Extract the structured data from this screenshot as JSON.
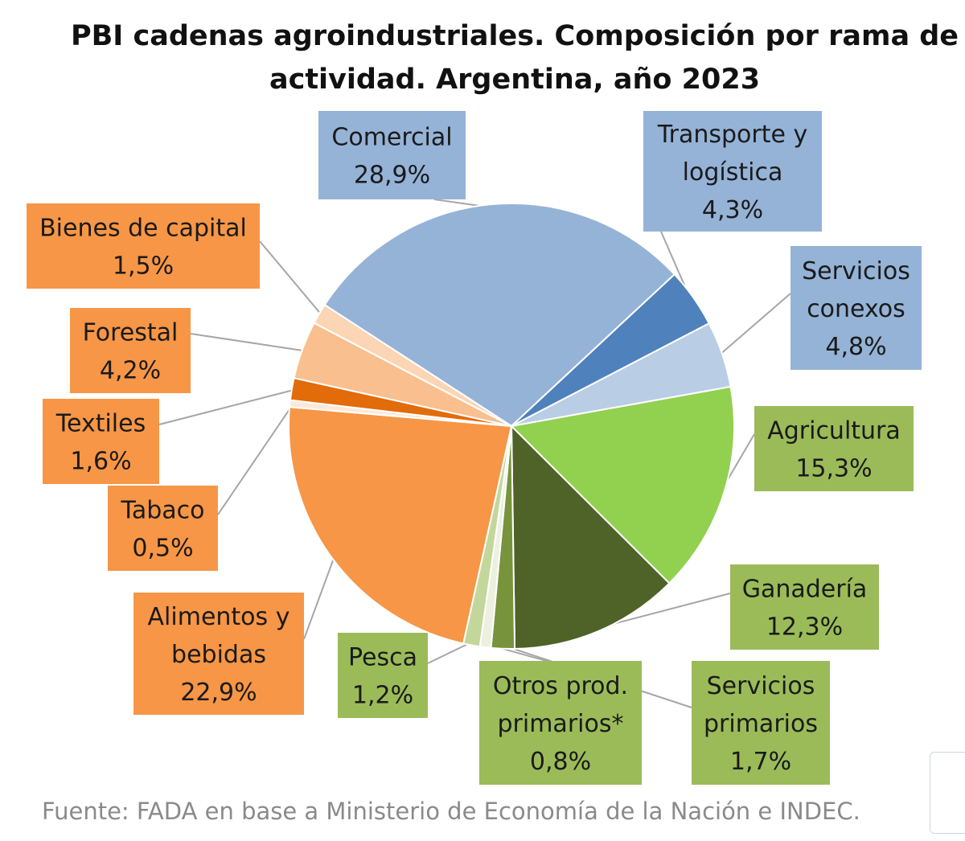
{
  "chart_data": {
    "type": "pie",
    "title": "PBI cadenas agroindustriales. Composición por rama de actividad. Argentina, año 2023",
    "source": "Fuente: FADA en base a Ministerio de Economía de la Nación e INDEC.",
    "slices": [
      {
        "name": "Comercial",
        "lines": [
          "Comercial",
          "28,9%"
        ],
        "value": 28.9,
        "color": "#95b3d7",
        "box": "#95b3d7"
      },
      {
        "name": "Transporte y logística",
        "lines": [
          "Transporte y",
          "logística",
          "4,3%"
        ],
        "value": 4.3,
        "color": "#4f81bd",
        "box": "#95b3d7"
      },
      {
        "name": "Servicios conexos",
        "lines": [
          "Servicios",
          "conexos",
          "4,8%"
        ],
        "value": 4.8,
        "color": "#b9cde5",
        "box": "#95b3d7"
      },
      {
        "name": "Agricultura",
        "lines": [
          "Agricultura",
          "15,3%"
        ],
        "value": 15.3,
        "color": "#92d050",
        "box": "#9bbb59"
      },
      {
        "name": "Ganadería",
        "lines": [
          "Ganadería",
          "12,3%"
        ],
        "value": 12.3,
        "color": "#4f6228",
        "box": "#9bbb59"
      },
      {
        "name": "Servicios primarios",
        "lines": [
          "Servicios",
          "primarios",
          "1,7%"
        ],
        "value": 1.7,
        "color": "#77933c",
        "box": "#9bbb59"
      },
      {
        "name": "Otros prod. primarios*",
        "lines": [
          "Otros prod.",
          "primarios*",
          "0,8%"
        ],
        "value": 0.8,
        "color": "#ebf1de",
        "box": "#9bbb59"
      },
      {
        "name": "Pesca",
        "lines": [
          "Pesca",
          "1,2%"
        ],
        "value": 1.2,
        "color": "#c4d79b",
        "box": "#9bbb59"
      },
      {
        "name": "Alimentos y bebidas",
        "lines": [
          "Alimentos y",
          "bebidas",
          "22,9%"
        ],
        "value": 22.9,
        "color": "#f79646",
        "box": "#f79646"
      },
      {
        "name": "Tabaco",
        "lines": [
          "Tabaco",
          "0,5%"
        ],
        "value": 0.5,
        "color": "#fde9d9",
        "box": "#f79646"
      },
      {
        "name": "Textiles",
        "lines": [
          "Textiles",
          "1,6%"
        ],
        "value": 1.6,
        "color": "#e26b0a",
        "box": "#f79646"
      },
      {
        "name": "Forestal",
        "lines": [
          "Forestal",
          "4,2%"
        ],
        "value": 4.2,
        "color": "#fabf8f",
        "box": "#f79646"
      },
      {
        "name": "Bienes de capital",
        "lines": [
          "Bienes de capital",
          "1,5%"
        ],
        "value": 1.5,
        "color": "#fcd5b4",
        "box": "#f79646"
      }
    ]
  }
}
